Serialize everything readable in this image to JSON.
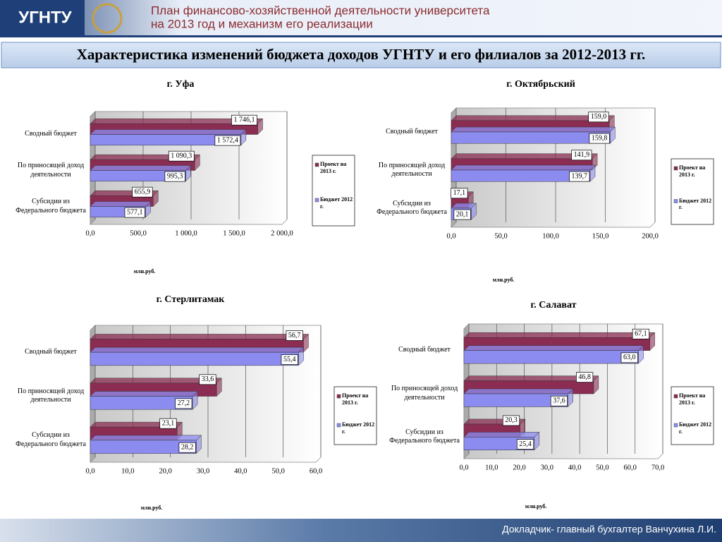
{
  "header": {
    "logo": "УГНТУ",
    "title_line1": "План финансово-хозяйственной деятельности университета",
    "title_line2": "на 2013 год и механизм его реализации",
    "subtitle": "Характеристика изменений бюджета доходов УГНТУ и его филиалов за 2012-2013 гг."
  },
  "footer": "Докладчик- главный бухгалтер Ванчухина Л.И.",
  "chart_data": [
    {
      "type": "bar",
      "orientation": "horizontal",
      "title": "г. Уфа",
      "x_label": "млн.руб.",
      "grid": true,
      "categories": [
        "Сводный бюджет",
        "По приносящей доход деятельности",
        "Субсидии из Федерального бюджета"
      ],
      "series": [
        {
          "name": "Проект на 2013 г.",
          "color": "#8b2c52",
          "values": [
            1746.1,
            1090.3,
            655.9
          ],
          "value_labels": [
            "1 746,1",
            "1 090,3",
            "655,9"
          ]
        },
        {
          "name": "Бюджет 2012 г.",
          "color": "#8c8cf0",
          "values": [
            1572.4,
            995.3,
            577.1
          ],
          "value_labels": [
            "1 572,4",
            "995,3",
            "577,1"
          ]
        }
      ],
      "xlim": [
        0,
        2000
      ],
      "xticks": [
        {
          "value": 0,
          "label": "0,0"
        },
        {
          "value": 500,
          "label": "500,0"
        },
        {
          "value": 1000,
          "label": "1 000,0"
        },
        {
          "value": 1500,
          "label": "1 500,0"
        },
        {
          "value": 2000,
          "label": "2 000,0"
        }
      ]
    },
    {
      "type": "bar",
      "orientation": "horizontal",
      "title": "г. Октябрьский",
      "x_label": "млн.руб.",
      "grid": true,
      "categories": [
        "Сводный бюджет",
        "По приносящей доход деятельности",
        "Субсидии из Федерального бюджета"
      ],
      "series": [
        {
          "name": "Проект на 2013 г.",
          "color": "#8b2c52",
          "values": [
            159.0,
            141.9,
            17.1
          ],
          "value_labels": [
            "159,0",
            "141,9",
            "17,1"
          ]
        },
        {
          "name": "Бюджет 2012 г.",
          "color": "#8c8cf0",
          "values": [
            159.8,
            139.7,
            20.1
          ],
          "value_labels": [
            "159,8",
            "139,7",
            "20,1"
          ]
        }
      ],
      "xlim": [
        0,
        200
      ],
      "xticks": [
        {
          "value": 0,
          "label": "0,0"
        },
        {
          "value": 50,
          "label": "50,0"
        },
        {
          "value": 100,
          "label": "100,0"
        },
        {
          "value": 150,
          "label": "150,0"
        },
        {
          "value": 200,
          "label": "200,0"
        }
      ]
    },
    {
      "type": "bar",
      "orientation": "horizontal",
      "title": "г. Стерлитамак",
      "x_label": "млн.руб.",
      "grid": true,
      "categories": [
        "Сводный бюджет",
        "По приносящей доход деятельности",
        "Субсидии из Федерального бюджета"
      ],
      "series": [
        {
          "name": "Проект на 2013 г.",
          "color": "#8b2c52",
          "values": [
            56.7,
            33.6,
            23.1
          ],
          "value_labels": [
            "56,7",
            "33,6",
            "23,1"
          ]
        },
        {
          "name": "Бюджет 2012 г.",
          "color": "#8c8cf0",
          "values": [
            55.4,
            27.2,
            28.2
          ],
          "value_labels": [
            "55,4",
            "27,2",
            "28,2"
          ]
        }
      ],
      "xlim": [
        0,
        60
      ],
      "xticks": [
        {
          "value": 0,
          "label": "0,0"
        },
        {
          "value": 10,
          "label": "10,0"
        },
        {
          "value": 20,
          "label": "20,0"
        },
        {
          "value": 30,
          "label": "30,0"
        },
        {
          "value": 40,
          "label": "40,0"
        },
        {
          "value": 50,
          "label": "50,0"
        },
        {
          "value": 60,
          "label": "60,0"
        }
      ]
    },
    {
      "type": "bar",
      "orientation": "horizontal",
      "title": "г. Салават",
      "x_label": "млн.руб.",
      "grid": true,
      "categories": [
        "Сводный бюджет",
        "По приносящей доход деятельности",
        "Субсидии из Федерального бюджета"
      ],
      "series": [
        {
          "name": "Проект на 2013 г.",
          "color": "#8b2c52",
          "values": [
            67.1,
            46.8,
            20.3
          ],
          "value_labels": [
            "67,1",
            "46,8",
            "20,3"
          ]
        },
        {
          "name": "Бюджет 2012 г.",
          "color": "#8c8cf0",
          "values": [
            63.0,
            37.6,
            25.4
          ],
          "value_labels": [
            "63,0",
            "37,6",
            "25,4"
          ]
        }
      ],
      "xlim": [
        0,
        70
      ],
      "xticks": [
        {
          "value": 0,
          "label": "0,0"
        },
        {
          "value": 10,
          "label": "10,0"
        },
        {
          "value": 20,
          "label": "20,0"
        },
        {
          "value": 30,
          "label": "30,0"
        },
        {
          "value": 40,
          "label": "40,0"
        },
        {
          "value": 50,
          "label": "50,0"
        },
        {
          "value": 60,
          "label": "60,0"
        },
        {
          "value": 70,
          "label": "70,0"
        }
      ]
    }
  ]
}
